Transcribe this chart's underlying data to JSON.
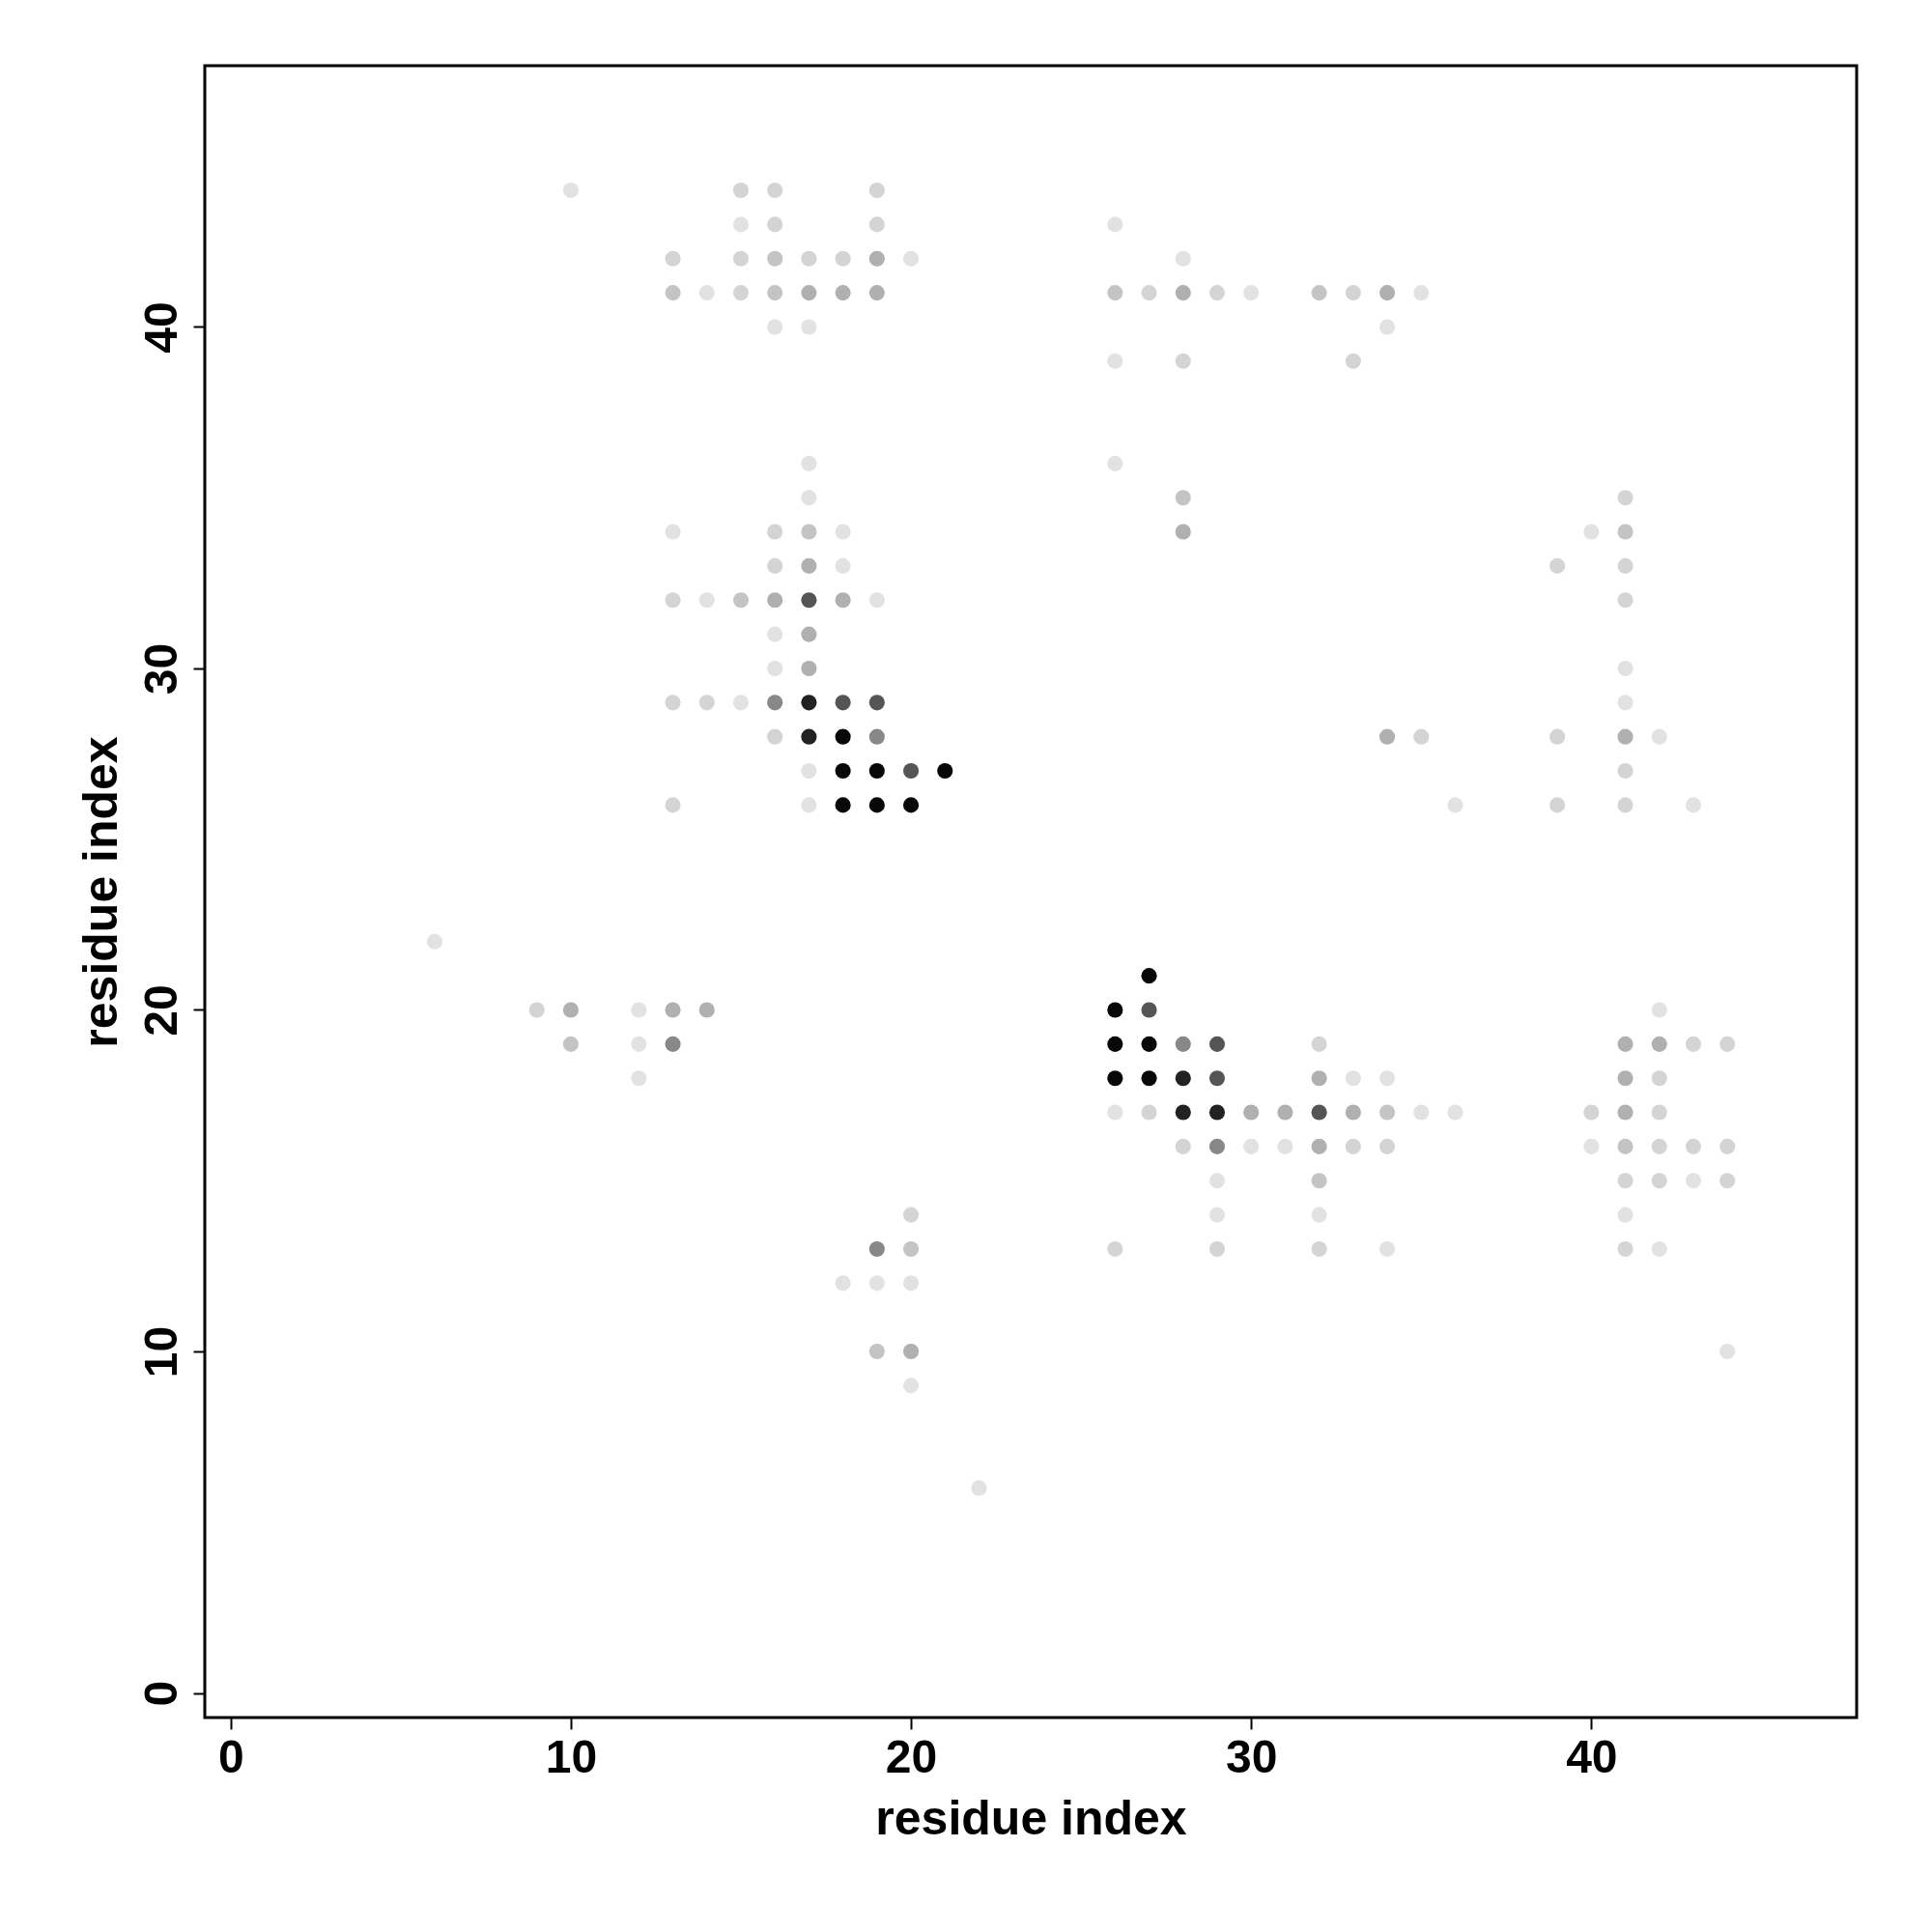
{
  "chart_data": {
    "type": "scatter",
    "xlabel": "residue index",
    "ylabel": "residue index",
    "xlim": [
      -0.76,
      47.8
    ],
    "ylim": [
      -0.72,
      47.65
    ],
    "xticks": [
      0,
      10,
      20,
      30,
      40
    ],
    "yticks": [
      0,
      10,
      20,
      30,
      40
    ],
    "grid": false,
    "marker": "circle",
    "series": [
      {
        "x": [
          10,
          15,
          16,
          19,
          15,
          16,
          19,
          26,
          13,
          15,
          16,
          17,
          18,
          19,
          20,
          28,
          13,
          14,
          15,
          16,
          17,
          18,
          19,
          26,
          27,
          28,
          29,
          30,
          32,
          33,
          34,
          35,
          16,
          17,
          34,
          26,
          28,
          33,
          17,
          26,
          17,
          28,
          41,
          13,
          16,
          17,
          18,
          28,
          40,
          41,
          16,
          17,
          18,
          39,
          41,
          13,
          14,
          15,
          16,
          17,
          18,
          19,
          41,
          16,
          17,
          16,
          17,
          41,
          13,
          14,
          15,
          16,
          17,
          18,
          19,
          41,
          16,
          17,
          18,
          19,
          34,
          35,
          39,
          41,
          42,
          17,
          18,
          19,
          20,
          21,
          41,
          13,
          17,
          18,
          19,
          20,
          36,
          39,
          41,
          43,
          6,
          27,
          9,
          10,
          12,
          13,
          14,
          26,
          27,
          42,
          10,
          12,
          13,
          26,
          27,
          28,
          29,
          32,
          41,
          42,
          43,
          44,
          12,
          26,
          27,
          28,
          29,
          32,
          33,
          34,
          41,
          42,
          26,
          27,
          28,
          29,
          30,
          31,
          32,
          33,
          34,
          35,
          36,
          40,
          41,
          42,
          28,
          29,
          30,
          31,
          32,
          33,
          34,
          40,
          41,
          42,
          43,
          44,
          29,
          32,
          41,
          42,
          43,
          44,
          20,
          29,
          32,
          41,
          19,
          20,
          26,
          29,
          32,
          34,
          41,
          42,
          18,
          19,
          20,
          19,
          20,
          44,
          20,
          22
        ],
        "values": [
          44,
          44,
          44,
          44,
          43,
          43,
          43,
          43,
          42,
          42,
          42,
          42,
          42,
          42,
          42,
          42,
          41,
          41,
          41,
          41,
          41,
          41,
          41,
          41,
          41,
          41,
          41,
          41,
          41,
          41,
          41,
          41,
          40,
          40,
          40,
          39,
          39,
          39,
          36,
          36,
          35,
          35,
          35,
          34,
          34,
          34,
          34,
          34,
          34,
          34,
          33,
          33,
          33,
          33,
          33,
          32,
          32,
          32,
          32,
          32,
          32,
          32,
          32,
          31,
          31,
          30,
          30,
          30,
          29,
          29,
          29,
          29,
          29,
          29,
          29,
          29,
          28,
          28,
          28,
          28,
          28,
          28,
          28,
          28,
          28,
          27,
          27,
          27,
          27,
          27,
          27,
          26,
          26,
          26,
          26,
          26,
          26,
          26,
          26,
          26,
          22,
          21,
          20,
          20,
          20,
          20,
          20,
          20,
          20,
          20,
          19,
          19,
          19,
          19,
          19,
          19,
          19,
          19,
          19,
          19,
          19,
          19,
          18,
          18,
          18,
          18,
          18,
          18,
          18,
          18,
          18,
          18,
          17,
          17,
          17,
          17,
          17,
          17,
          17,
          17,
          17,
          17,
          17,
          17,
          17,
          17,
          16,
          16,
          16,
          16,
          16,
          16,
          16,
          16,
          16,
          16,
          16,
          16,
          15,
          15,
          15,
          15,
          15,
          15,
          14,
          14,
          14,
          14,
          13,
          13,
          13,
          13,
          13,
          13,
          13,
          13,
          12,
          12,
          12,
          10,
          10,
          10,
          9,
          6
        ],
        "colors": [
          "#e2e2e2",
          "#d4d4d4",
          "#d4d4d4",
          "#d4d4d4",
          "#e2e2e2",
          "#d4d4d4",
          "#d4d4d4",
          "#e2e2e2",
          "#d4d4d4",
          "#d4d4d4",
          "#c4c4c4",
          "#d4d4d4",
          "#d4d4d4",
          "#b0b0b0",
          "#e2e2e2",
          "#e2e2e2",
          "#c4c4c4",
          "#e2e2e2",
          "#d4d4d4",
          "#c4c4c4",
          "#b0b0b0",
          "#b0b0b0",
          "#b0b0b0",
          "#c4c4c4",
          "#d4d4d4",
          "#b0b0b0",
          "#d4d4d4",
          "#e2e2e2",
          "#c4c4c4",
          "#d4d4d4",
          "#b0b0b0",
          "#e2e2e2",
          "#e2e2e2",
          "#e2e2e2",
          "#e2e2e2",
          "#e2e2e2",
          "#d4d4d4",
          "#d4d4d4",
          "#e2e2e2",
          "#e2e2e2",
          "#e2e2e2",
          "#c4c4c4",
          "#d4d4d4",
          "#e2e2e2",
          "#d4d4d4",
          "#c4c4c4",
          "#e2e2e2",
          "#b0b0b0",
          "#e2e2e2",
          "#c4c4c4",
          "#d4d4d4",
          "#b0b0b0",
          "#e2e2e2",
          "#d4d4d4",
          "#d4d4d4",
          "#d4d4d4",
          "#e2e2e2",
          "#c4c4c4",
          "#b0b0b0",
          "#555555",
          "#b0b0b0",
          "#e2e2e2",
          "#d4d4d4",
          "#e2e2e2",
          "#b0b0b0",
          "#e2e2e2",
          "#b0b0b0",
          "#e2e2e2",
          "#d4d4d4",
          "#d4d4d4",
          "#e2e2e2",
          "#888888",
          "#222222",
          "#555555",
          "#555555",
          "#e2e2e2",
          "#d4d4d4",
          "#222222",
          "#080808",
          "#888888",
          "#b0b0b0",
          "#d4d4d4",
          "#d4d4d4",
          "#b0b0b0",
          "#e2e2e2",
          "#e2e2e2",
          "#080808",
          "#080808",
          "#555555",
          "#080808",
          "#d4d4d4",
          "#d4d4d4",
          "#e2e2e2",
          "#080808",
          "#080808",
          "#080808",
          "#e2e2e2",
          "#d4d4d4",
          "#d4d4d4",
          "#e2e2e2",
          "#e2e2e2",
          "#080808",
          "#d4d4d4",
          "#b0b0b0",
          "#e2e2e2",
          "#b0b0b0",
          "#b0b0b0",
          "#080808",
          "#555555",
          "#e2e2e2",
          "#c4c4c4",
          "#e2e2e2",
          "#888888",
          "#080808",
          "#080808",
          "#888888",
          "#555555",
          "#d4d4d4",
          "#b0b0b0",
          "#b0b0b0",
          "#d4d4d4",
          "#d4d4d4",
          "#e2e2e2",
          "#080808",
          "#080808",
          "#222222",
          "#555555",
          "#b0b0b0",
          "#e2e2e2",
          "#e2e2e2",
          "#b0b0b0",
          "#d4d4d4",
          "#e2e2e2",
          "#d4d4d4",
          "#222222",
          "#222222",
          "#b0b0b0",
          "#b0b0b0",
          "#555555",
          "#b0b0b0",
          "#c4c4c4",
          "#e2e2e2",
          "#e2e2e2",
          "#d4d4d4",
          "#b0b0b0",
          "#d4d4d4",
          "#d4d4d4",
          "#888888",
          "#e2e2e2",
          "#e2e2e2",
          "#b0b0b0",
          "#d4d4d4",
          "#d4d4d4",
          "#e2e2e2",
          "#c4c4c4",
          "#d4d4d4",
          "#d4d4d4",
          "#d4d4d4",
          "#e2e2e2",
          "#c4c4c4",
          "#d4d4d4",
          "#d4d4d4",
          "#e2e2e2",
          "#d4d4d4",
          "#d4d4d4",
          "#e2e2e2",
          "#e2e2e2",
          "#e2e2e2",
          "#888888",
          "#c4c4c4",
          "#d4d4d4",
          "#d4d4d4",
          "#d4d4d4",
          "#e2e2e2",
          "#d4d4d4",
          "#e2e2e2",
          "#e2e2e2",
          "#e2e2e2",
          "#e2e2e2",
          "#c4c4c4",
          "#b0b0b0",
          "#e2e2e2",
          "#e2e2e2",
          "#e2e2e2"
        ]
      }
    ]
  }
}
